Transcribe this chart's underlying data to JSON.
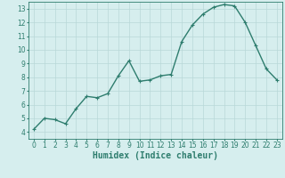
{
  "x": [
    0,
    1,
    2,
    3,
    4,
    5,
    6,
    7,
    8,
    9,
    10,
    11,
    12,
    13,
    14,
    15,
    16,
    17,
    18,
    19,
    20,
    21,
    22,
    23
  ],
  "y": [
    4.2,
    5.0,
    4.9,
    4.6,
    5.7,
    6.6,
    6.5,
    6.8,
    8.1,
    9.2,
    7.7,
    7.8,
    8.1,
    8.2,
    10.6,
    11.8,
    12.6,
    13.1,
    13.3,
    13.2,
    12.0,
    10.3,
    8.6,
    7.8
  ],
  "line_color": "#2e7d6e",
  "marker": "+",
  "marker_size": 3,
  "background_color": "#d6eeee",
  "grid_color": "#b8d8d8",
  "xlabel": "Humidex (Indice chaleur)",
  "xlim": [
    -0.5,
    23.5
  ],
  "ylim": [
    3.5,
    13.5
  ],
  "yticks": [
    4,
    5,
    6,
    7,
    8,
    9,
    10,
    11,
    12,
    13
  ],
  "xticks": [
    0,
    1,
    2,
    3,
    4,
    5,
    6,
    7,
    8,
    9,
    10,
    11,
    12,
    13,
    14,
    15,
    16,
    17,
    18,
    19,
    20,
    21,
    22,
    23
  ],
  "tick_fontsize": 5.5,
  "xlabel_fontsize": 7,
  "line_width": 1.0
}
